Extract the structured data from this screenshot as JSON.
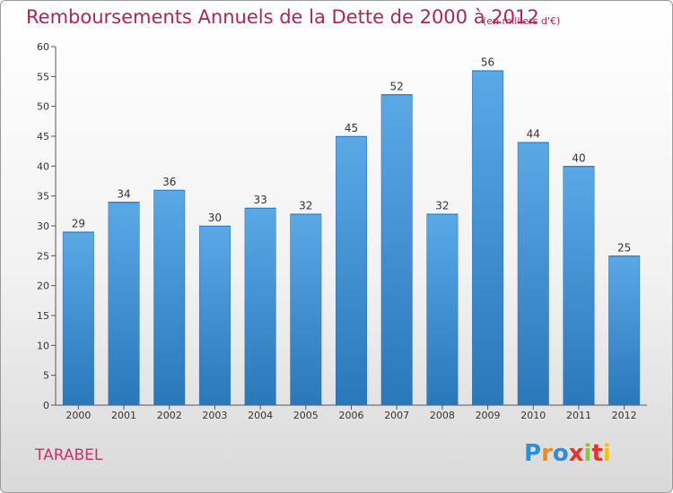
{
  "chart_data": {
    "type": "bar",
    "title": "Remboursements Annuels de la Dette de 2000 à 2012",
    "subtitle": "(en milliers d'€)",
    "categories": [
      "2000",
      "2001",
      "2002",
      "2003",
      "2004",
      "2005",
      "2006",
      "2007",
      "2008",
      "2009",
      "2010",
      "2011",
      "2012"
    ],
    "values": [
      29,
      34,
      36,
      30,
      33,
      32,
      45,
      52,
      32,
      56,
      44,
      40,
      25
    ],
    "ylim": [
      0,
      60
    ],
    "yticks": [
      0,
      5,
      10,
      15,
      20,
      25,
      30,
      35,
      40,
      45,
      50,
      55,
      60
    ],
    "xlabel": "",
    "ylabel": "",
    "grid": false,
    "bar_color": "#3c8fd4"
  },
  "footer": {
    "place": "TARABEL",
    "logo_text": "Proxiti",
    "logo_colors": [
      "#2f8fd6",
      "#f08a1c",
      "#2f8fd6",
      "#e6332a",
      "#8cc63f",
      "#e6332a",
      "#f2c00e"
    ]
  }
}
